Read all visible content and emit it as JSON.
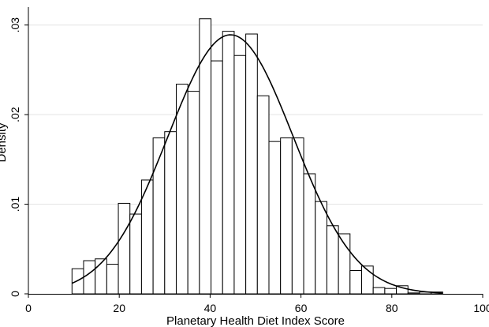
{
  "chart_data": {
    "type": "histogram",
    "xlabel": "Planetary Health Diet Index Score",
    "ylabel": "Density",
    "xlim": [
      0,
      100
    ],
    "ylim": [
      0,
      0.032
    ],
    "x_ticks": [
      0,
      20,
      40,
      60,
      80,
      100
    ],
    "x_tick_labels": [
      "0",
      "20",
      "40",
      "60",
      "80",
      "100"
    ],
    "y_ticks": [
      0,
      0.01,
      0.02,
      0.03
    ],
    "y_tick_labels": [
      "0",
      ".01",
      ".02",
      ".03"
    ],
    "grid": "horizontal",
    "bin_width": 2.55,
    "bins": [
      {
        "start": 9.6,
        "density": 0.0028
      },
      {
        "start": 12.15,
        "density": 0.0037
      },
      {
        "start": 14.7,
        "density": 0.0039
      },
      {
        "start": 17.25,
        "density": 0.0033
      },
      {
        "start": 19.8,
        "density": 0.0101
      },
      {
        "start": 22.35,
        "density": 0.0089
      },
      {
        "start": 24.9,
        "density": 0.0127
      },
      {
        "start": 27.45,
        "density": 0.0174
      },
      {
        "start": 30.0,
        "density": 0.0181
      },
      {
        "start": 32.55,
        "density": 0.0234
      },
      {
        "start": 35.1,
        "density": 0.0226
      },
      {
        "start": 37.65,
        "density": 0.0307
      },
      {
        "start": 40.2,
        "density": 0.026
      },
      {
        "start": 42.75,
        "density": 0.0293
      },
      {
        "start": 45.3,
        "density": 0.0266
      },
      {
        "start": 47.85,
        "density": 0.029
      },
      {
        "start": 50.4,
        "density": 0.0221
      },
      {
        "start": 52.95,
        "density": 0.017
      },
      {
        "start": 55.5,
        "density": 0.0174
      },
      {
        "start": 58.05,
        "density": 0.0174
      },
      {
        "start": 60.6,
        "density": 0.0134
      },
      {
        "start": 63.15,
        "density": 0.0103
      },
      {
        "start": 65.7,
        "density": 0.0076
      },
      {
        "start": 68.25,
        "density": 0.0067
      },
      {
        "start": 70.8,
        "density": 0.0026
      },
      {
        "start": 73.35,
        "density": 0.0031
      },
      {
        "start": 75.9,
        "density": 0.0007
      },
      {
        "start": 78.45,
        "density": 0.0006
      },
      {
        "start": 81.0,
        "density": 0.0009
      },
      {
        "start": 83.55,
        "density": 0.0001
      },
      {
        "start": 86.1,
        "density": 0.0002
      },
      {
        "start": 88.65,
        "density": 0.0002
      }
    ],
    "overlay_curve": {
      "type": "normal density",
      "mean": 44.5,
      "sd": 13.8,
      "x_range": [
        9.6,
        91.2
      ]
    }
  }
}
